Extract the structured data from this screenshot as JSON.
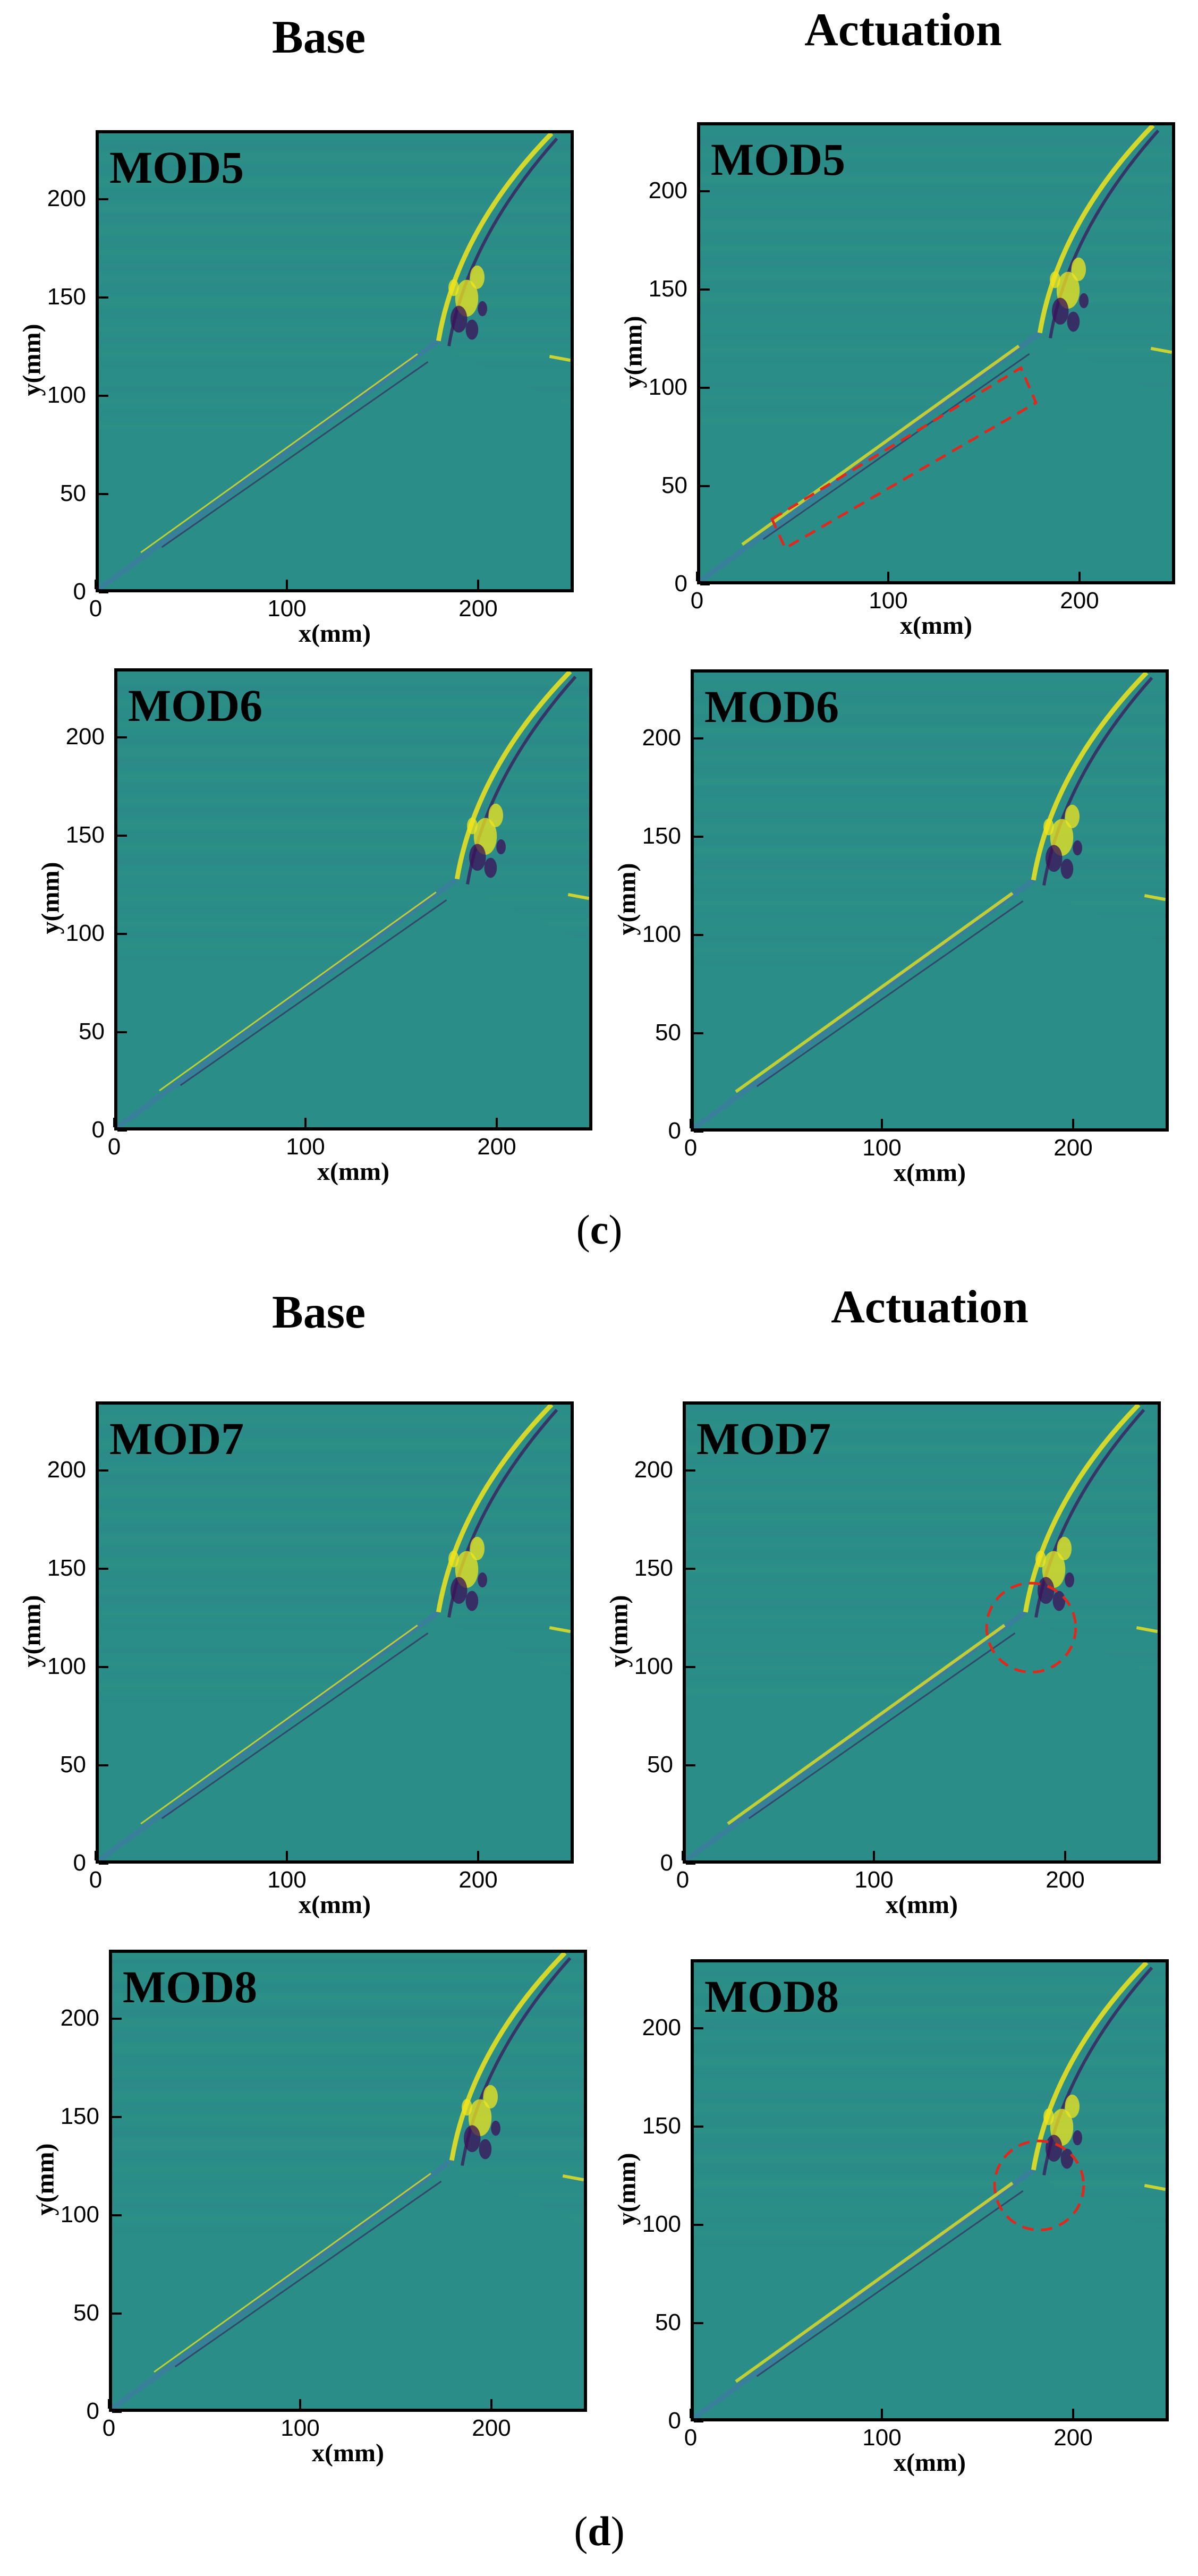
{
  "figure": {
    "section_c": {
      "label": "c",
      "col_titles": [
        "Base",
        "Actuation"
      ],
      "plots": [
        {
          "mode": "MOD5",
          "variant": "base"
        },
        {
          "mode": "MOD5",
          "variant": "actuation",
          "annotation": "dashed-rectangle"
        },
        {
          "mode": "MOD6",
          "variant": "base"
        },
        {
          "mode": "MOD6",
          "variant": "actuation"
        }
      ]
    },
    "section_d": {
      "label": "d",
      "col_titles": [
        "Base",
        "Actuation"
      ],
      "plots": [
        {
          "mode": "MOD7",
          "variant": "base"
        },
        {
          "mode": "MOD7",
          "variant": "actuation",
          "annotation": "dashed-circle"
        },
        {
          "mode": "MOD8",
          "variant": "base"
        },
        {
          "mode": "MOD8",
          "variant": "actuation",
          "annotation": "dashed-circle"
        }
      ]
    },
    "axes": {
      "xlabel": "x(mm)",
      "ylabel": "y(mm)",
      "xticks": [
        "0",
        "100",
        "200"
      ],
      "yticks": [
        "0",
        "50",
        "100",
        "150",
        "200"
      ],
      "xlim": [
        0,
        250
      ],
      "ylim": [
        0,
        235
      ]
    },
    "colors": {
      "background": "#2a8d87",
      "positive": "#f2e51c",
      "negative": "#3b0f58",
      "annotation": "#e0281c"
    }
  }
}
